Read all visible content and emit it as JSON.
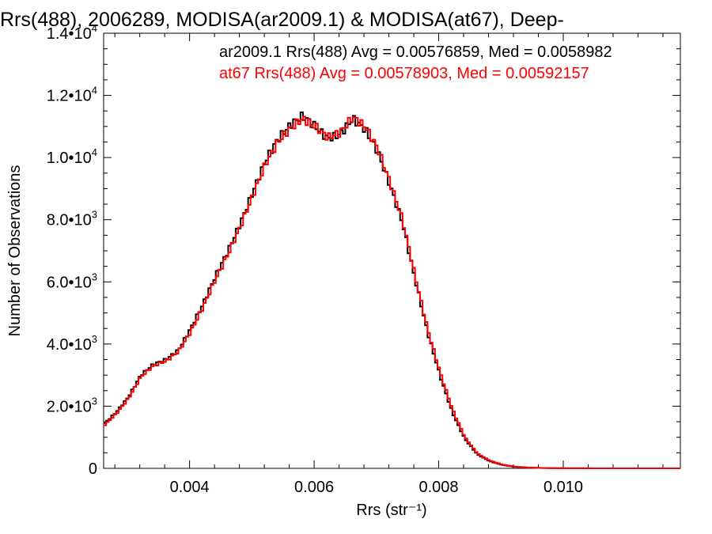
{
  "chart_data": {
    "type": "line",
    "title": "Rrs(488), 2006289, MODISA(ar2009.1) & MODISA(at67), Deep-",
    "xlabel": "Rrs (str⁻¹)",
    "ylabel": "Number of Observations",
    "xlim": [
      0.00262,
      0.01188
    ],
    "ylim": [
      0,
      14000
    ],
    "x_ticks": [
      {
        "value": 0.004,
        "label": "0.004"
      },
      {
        "value": 0.006,
        "label": "0.006"
      },
      {
        "value": 0.008,
        "label": "0.008"
      },
      {
        "value": 0.01,
        "label": "0.010"
      }
    ],
    "y_ticks": [
      {
        "value": 0,
        "mant": "0",
        "exp": ""
      },
      {
        "value": 2000,
        "mant": "2.0•10",
        "exp": "3"
      },
      {
        "value": 4000,
        "mant": "4.0•10",
        "exp": "3"
      },
      {
        "value": 6000,
        "mant": "6.0•10",
        "exp": "3"
      },
      {
        "value": 8000,
        "mant": "8.0•10",
        "exp": "3"
      },
      {
        "value": 10000,
        "mant": "1.0•10",
        "exp": "4"
      },
      {
        "value": 12000,
        "mant": "1.2•10",
        "exp": "4"
      },
      {
        "value": 14000,
        "mant": "1.4•10",
        "exp": "4"
      }
    ],
    "series": [
      {
        "name": "ar2009.1",
        "color": "#000000",
        "legend": "ar2009.1 Rrs(488) Avg = 0.00576859, Med = 0.0058982",
        "x": [
          0.00262,
          0.0028,
          0.003,
          0.0032,
          0.0034,
          0.0036,
          0.0038,
          0.004,
          0.0042,
          0.0044,
          0.0046,
          0.0048,
          0.005,
          0.0052,
          0.0054,
          0.0056,
          0.0058,
          0.006,
          0.0062,
          0.0064,
          0.0066,
          0.0068,
          0.007,
          0.0072,
          0.0074,
          0.0076,
          0.0078,
          0.008,
          0.0082,
          0.0084,
          0.0086,
          0.0088,
          0.009,
          0.0092,
          0.0094,
          0.0096,
          0.0098,
          0.01,
          0.0105,
          0.011,
          0.01188
        ],
        "y": [
          1450,
          1800,
          2300,
          3000,
          3350,
          3500,
          3800,
          4500,
          5300,
          6200,
          7000,
          7900,
          8900,
          9900,
          10600,
          11050,
          11350,
          11000,
          10600,
          10750,
          11250,
          10900,
          10200,
          9100,
          7900,
          6100,
          4400,
          3000,
          1800,
          950,
          450,
          230,
          110,
          50,
          25,
          12,
          6,
          3,
          1,
          0,
          0
        ]
      },
      {
        "name": "at67",
        "color": "#ff0000",
        "legend": "at67 Rrs(488) Avg = 0.00578903, Med = 0.00592157",
        "x": [
          0.00262,
          0.0028,
          0.003,
          0.0032,
          0.0034,
          0.0036,
          0.0038,
          0.004,
          0.0042,
          0.0044,
          0.0046,
          0.0048,
          0.005,
          0.0052,
          0.0054,
          0.0056,
          0.0058,
          0.006,
          0.0062,
          0.0064,
          0.0066,
          0.0068,
          0.007,
          0.0072,
          0.0074,
          0.0076,
          0.0078,
          0.008,
          0.0082,
          0.0084,
          0.0086,
          0.0088,
          0.009,
          0.0092,
          0.0094,
          0.0096,
          0.0098,
          0.01,
          0.0105,
          0.011,
          0.01188
        ],
        "y": [
          1400,
          1750,
          2250,
          2950,
          3300,
          3450,
          3750,
          4400,
          5200,
          6100,
          6900,
          7800,
          8800,
          9800,
          10500,
          10950,
          11250,
          11000,
          10650,
          10800,
          11300,
          11000,
          10300,
          9200,
          8000,
          6200,
          4500,
          3100,
          1900,
          1000,
          480,
          250,
          120,
          55,
          28,
          14,
          7,
          4,
          1,
          0,
          0
        ]
      }
    ],
    "grid": false,
    "legend_position": "top-right"
  }
}
